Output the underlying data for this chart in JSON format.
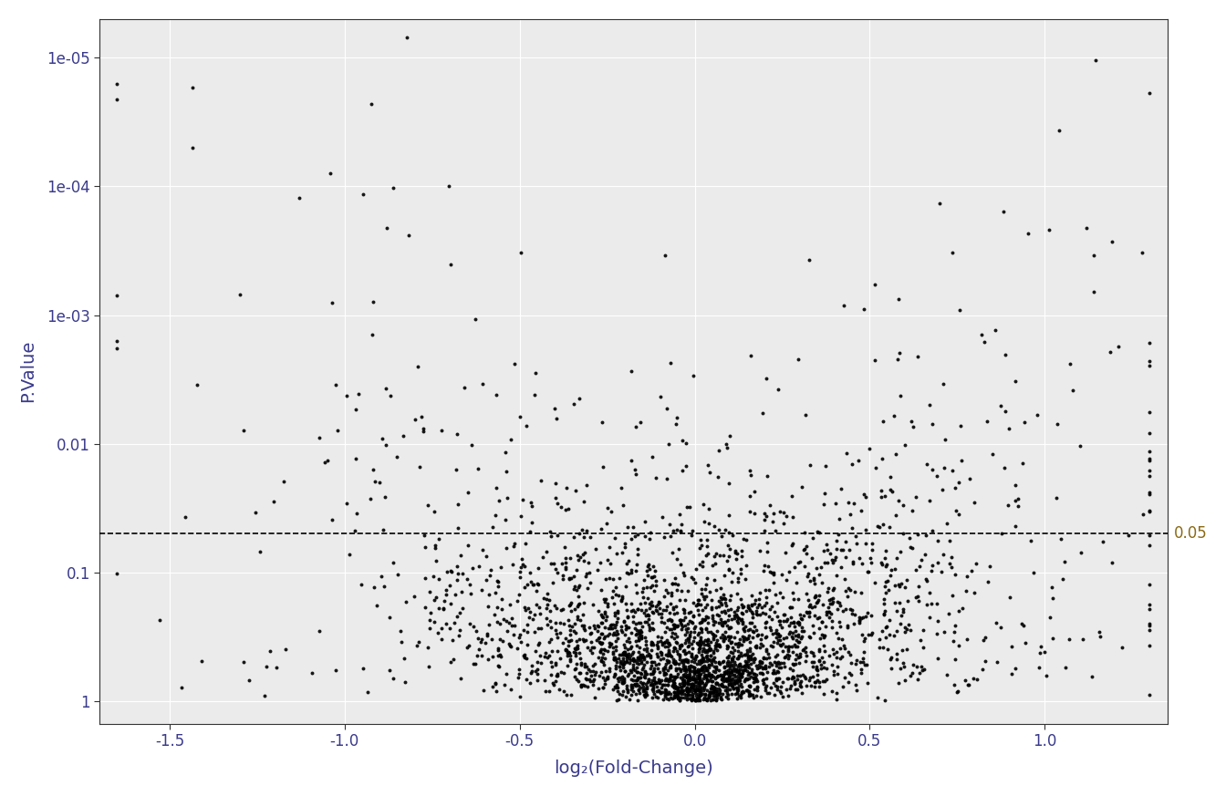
{
  "title": "",
  "xlabel": "log₂(Fold-Change)",
  "ylabel": "P.Value",
  "xlim": [
    -1.7,
    1.35
  ],
  "threshold_pval": 0.05,
  "threshold_label": "0.05",
  "background_color": "#ffffff",
  "panel_color": "#ebebeb",
  "grid_color": "#ffffff",
  "point_color": "#000000",
  "point_size": 8,
  "point_alpha": 0.9,
  "dashed_line_color": "#000000",
  "axis_label_color": "#3a3a8c",
  "tick_label_color": "#3a3a8c",
  "threshold_label_color": "#8b6914",
  "n_points": 3000,
  "seed": 99
}
